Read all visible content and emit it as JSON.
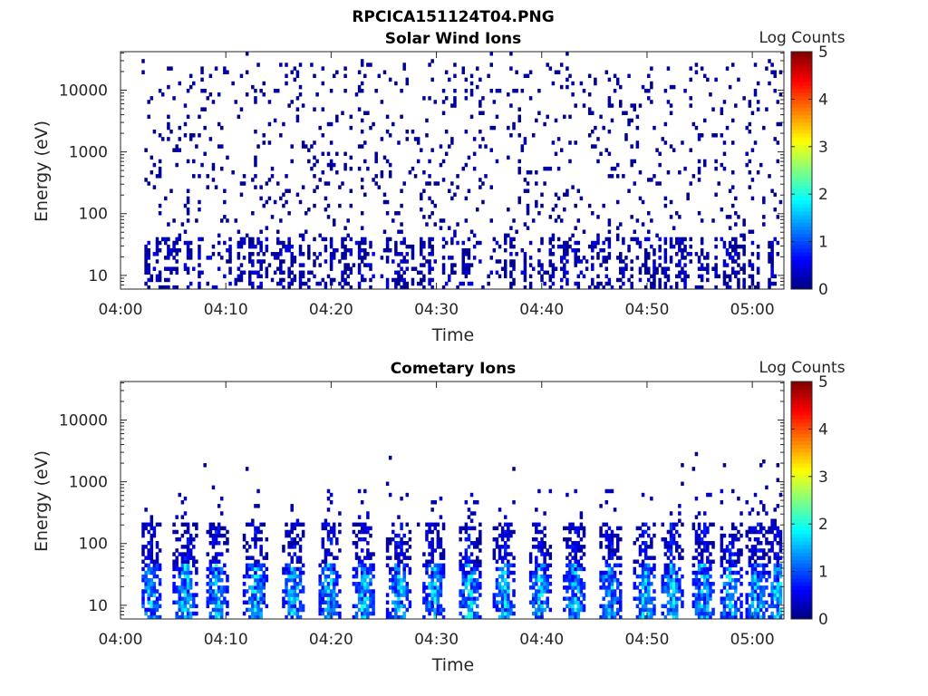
{
  "figure_title": "RPCICA151124T04.PNG",
  "chart_data": [
    {
      "type": "heatmap",
      "title": "Solar Wind Ions",
      "xlabel": "Time",
      "ylabel": "Energy (eV)",
      "x_ticks": [
        "04:00",
        "04:10",
        "04:20",
        "04:30",
        "04:40",
        "04:50",
        "05:00"
      ],
      "x_range_minutes": [
        0,
        63
      ],
      "y_ticks": [
        "10",
        "100",
        "1000",
        "10000"
      ],
      "y_scale": "log",
      "y_range": [
        6,
        42000
      ],
      "colorbar_label": "Log Counts",
      "colorbar_ticks": [
        "0",
        "1",
        "2",
        "3",
        "4",
        "5"
      ],
      "colorbar_range": [
        0,
        5
      ],
      "colormap": "jet",
      "description_level": "sparse dark-blue counts (log counts ~0-0.3) scattered across 20 eV - 30 keV, denser columns at 10-40 eV"
    },
    {
      "type": "heatmap",
      "title": "Cometary Ions",
      "xlabel": "Time",
      "ylabel": "Energy (eV)",
      "x_ticks": [
        "04:00",
        "04:10",
        "04:20",
        "04:30",
        "04:40",
        "04:50",
        "05:00"
      ],
      "x_range_minutes": [
        0,
        63
      ],
      "y_ticks": [
        "10",
        "100",
        "1000",
        "10000"
      ],
      "y_scale": "log",
      "y_range": [
        6,
        42000
      ],
      "colorbar_label": "Log Counts",
      "colorbar_ticks": [
        "0",
        "1",
        "2",
        "3",
        "4",
        "5"
      ],
      "colorbar_range": [
        0,
        5
      ],
      "colormap": "jet",
      "bursts_minutes": [
        2.7,
        6.0,
        9.0,
        12.7,
        16.3,
        19.7,
        23.0,
        26.3,
        29.6,
        33.0,
        36.3,
        39.7,
        43.0,
        46.4,
        49.7,
        52.2,
        55.2,
        57.8,
        60.3,
        62.3
      ],
      "peak_log_counts": 2.1
    }
  ]
}
